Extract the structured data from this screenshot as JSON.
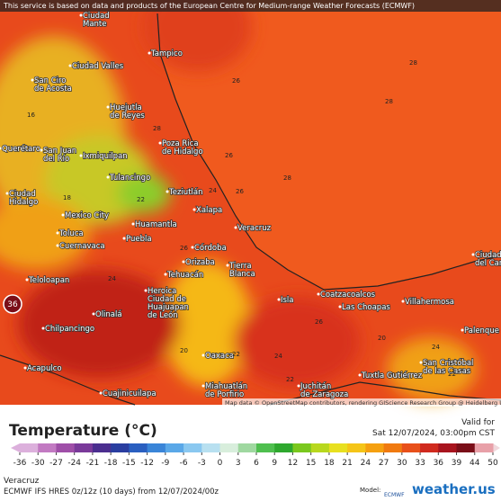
{
  "banner": "This service is based on data and products of the European Centre for Medium-range Weather Forecasts (ECMWF)",
  "cities": [
    [
      "Ciudad",
      "Mante"
    ],
    [
      "Tampico"
    ],
    [
      "Ciudad Valles"
    ],
    [
      "San Ciro",
      "de Acosta"
    ],
    [
      "Huejutla",
      "de Reyes"
    ],
    [
      "Poza Rica",
      "de Hidalgo"
    ],
    [
      "Querétaro"
    ],
    [
      "San Juan",
      "del Río"
    ],
    [
      "Ixmiquilpan"
    ],
    [
      "Tulancingo"
    ],
    [
      "Teziutlán"
    ],
    [
      "Xalapa"
    ],
    [
      "Ciudad",
      "Hidalgo"
    ],
    [
      "Mexico City"
    ],
    [
      "Toluca"
    ],
    [
      "Cuernavaca"
    ],
    [
      "Huamantla"
    ],
    [
      "Puebla"
    ],
    [
      "Córdoba"
    ],
    [
      "Orizaba"
    ],
    [
      "Veracruz"
    ],
    [
      "Tierra",
      "Blanca"
    ],
    [
      "Tehuacán"
    ],
    [
      "Heroica",
      "Ciudad de",
      "Huajuapan",
      "de León"
    ],
    [
      "Coatzacoalcos"
    ],
    [
      "Las Choapas"
    ],
    [
      "Villahermosa"
    ],
    [
      "Ciudad",
      "del Carme"
    ],
    [
      "Palenque"
    ],
    [
      "Teloloapan"
    ],
    [
      "Chilpancingo"
    ],
    [
      "Olinalá"
    ],
    [
      "Acapulco"
    ],
    [
      "Oaxaca"
    ],
    [
      "Miahuatlán",
      "de Porfirio"
    ],
    [
      "Juchitán",
      "de Zaragoza"
    ],
    [
      "Tuxtla Gutiérrez"
    ],
    [
      "San Cristóbal",
      "de las Casas"
    ],
    [
      "Cuajinicuilapa"
    ],
    [
      "Isla"
    ]
  ],
  "contour_labels": [
    26,
    28,
    26,
    28,
    26,
    26,
    28,
    24,
    22,
    16,
    18,
    24,
    20,
    22,
    24,
    22,
    20,
    24,
    22,
    28,
    26
  ],
  "location_marker": 36,
  "attribution": "Map data © OpenStreetMap contributors, rendering GIScience Research Group @ Heidelberg University",
  "legend": {
    "title": "Temperature (°C)",
    "valid_label": "Valid for",
    "valid_time": "Sat 12/07/2024, 03:00pm CST",
    "ticks": [
      -36,
      -30,
      -27,
      -24,
      -21,
      -18,
      -15,
      -12,
      -9,
      -6,
      -3,
      0,
      3,
      6,
      9,
      12,
      15,
      18,
      21,
      24,
      27,
      30,
      33,
      36,
      39,
      44,
      50
    ],
    "colors": [
      "#dcb0dc",
      "#c27ac2",
      "#9f4fa8",
      "#7a3a9a",
      "#4b2e8f",
      "#2a3ea0",
      "#2a5fc0",
      "#3a85d8",
      "#5aa8e8",
      "#8ac8f0",
      "#b8e0f0",
      "#d8eedc",
      "#9fd8a0",
      "#4fbf4f",
      "#2ea82e",
      "#7ac81e",
      "#b8d81e",
      "#e8e020",
      "#f5c518",
      "#f5a010",
      "#f07a10",
      "#e8501a",
      "#d02a1e",
      "#a8141e",
      "#7a0e18",
      "#e8a0a8",
      "#f0d8dc"
    ]
  },
  "footer": {
    "place": "Veracruz",
    "model_run": "ECMWF IFS HRES 0z/12z (10 days) from 12/07/2024/00z",
    "model_label": "Model:",
    "model": "ECMWF",
    "brand": "weather.us"
  }
}
